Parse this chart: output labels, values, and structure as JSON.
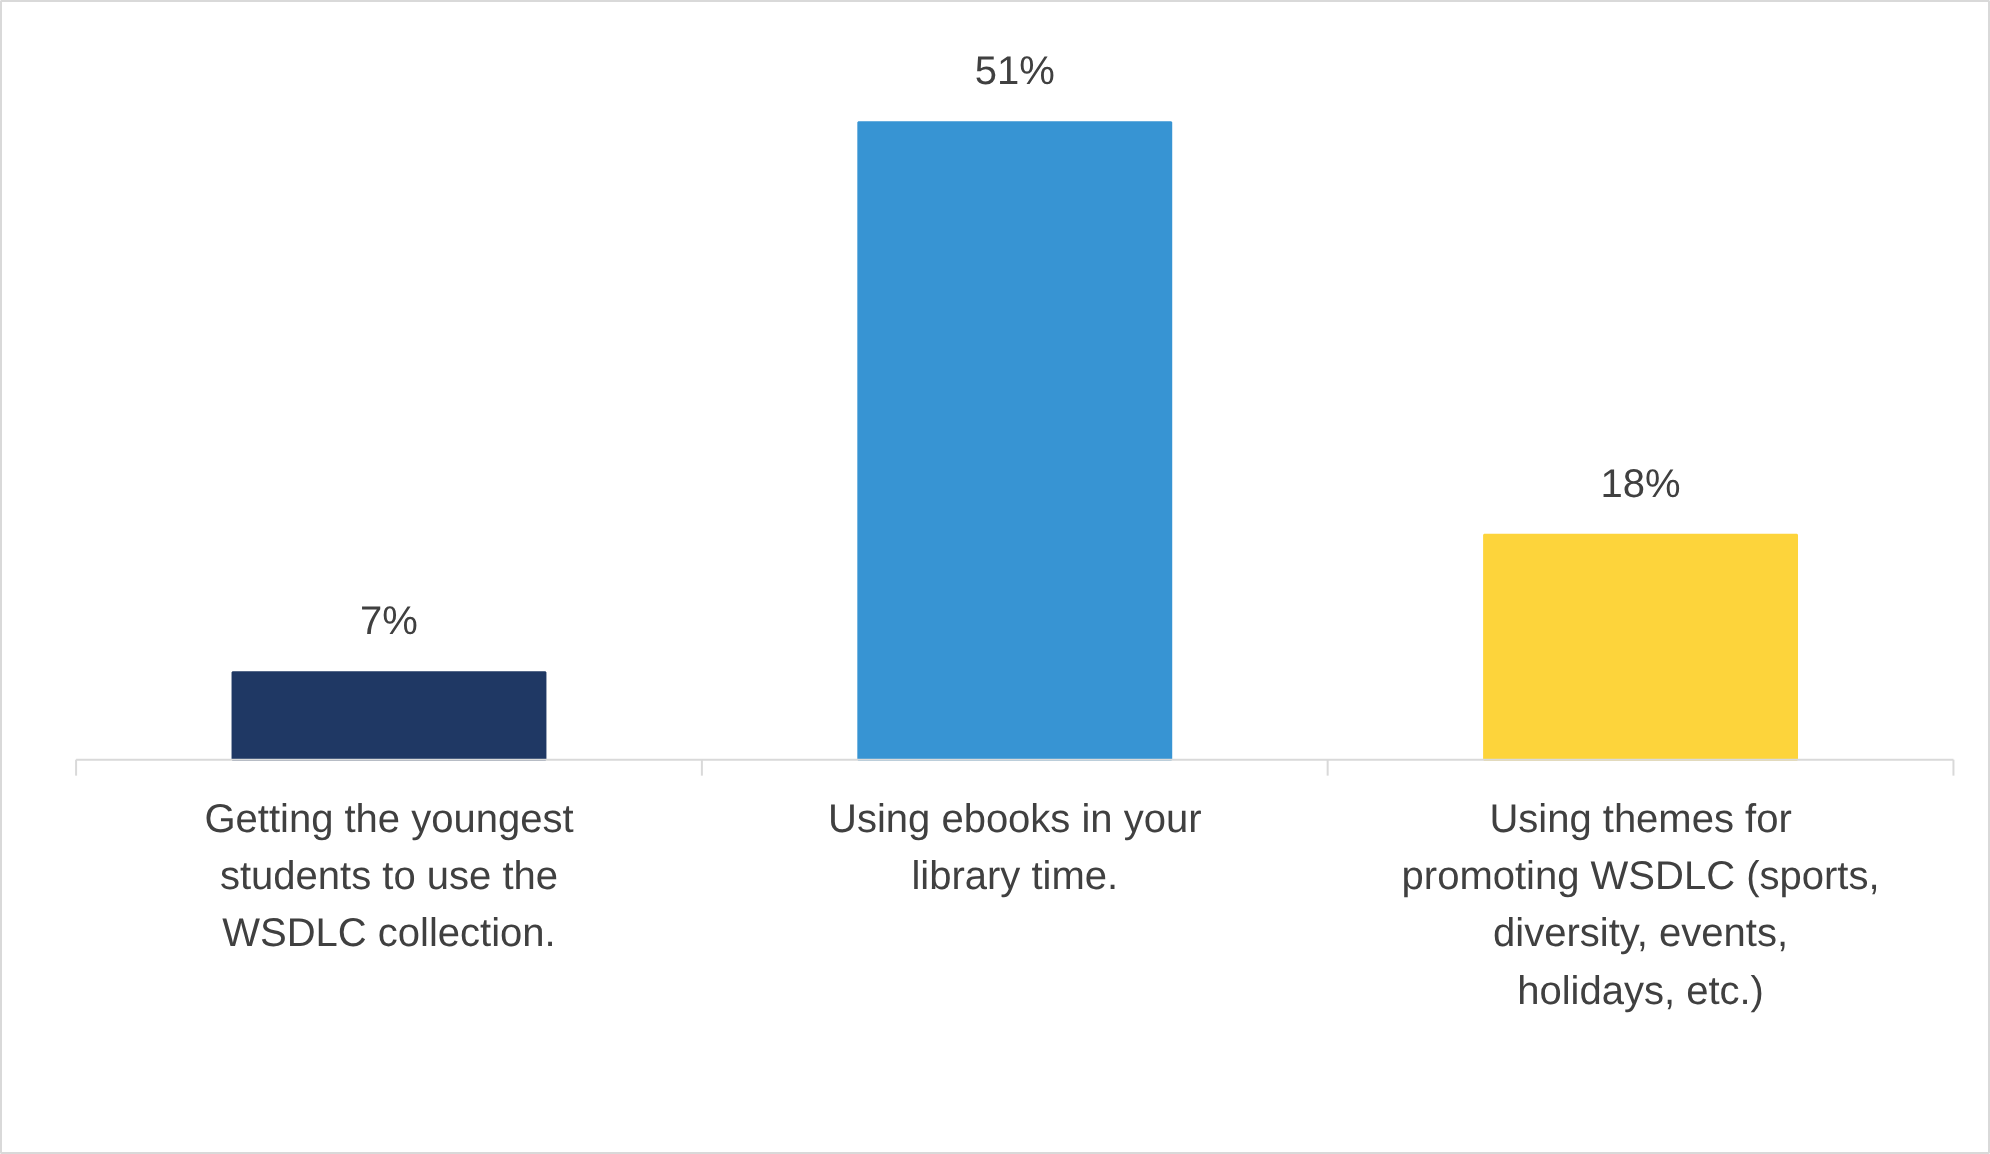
{
  "chart_data": {
    "type": "bar",
    "categories": [
      "Getting the youngest students to use the WSDLC collection.",
      "Using ebooks in your library time.",
      "Using themes for promoting WSDLC (sports, diversity, events, holidays, etc.)"
    ],
    "values": [
      7,
      51,
      18
    ],
    "colors": [
      "#1f3864",
      "#3794d3",
      "#fdd43b"
    ],
    "value_labels": [
      "7%",
      "51%",
      "18%"
    ]
  }
}
